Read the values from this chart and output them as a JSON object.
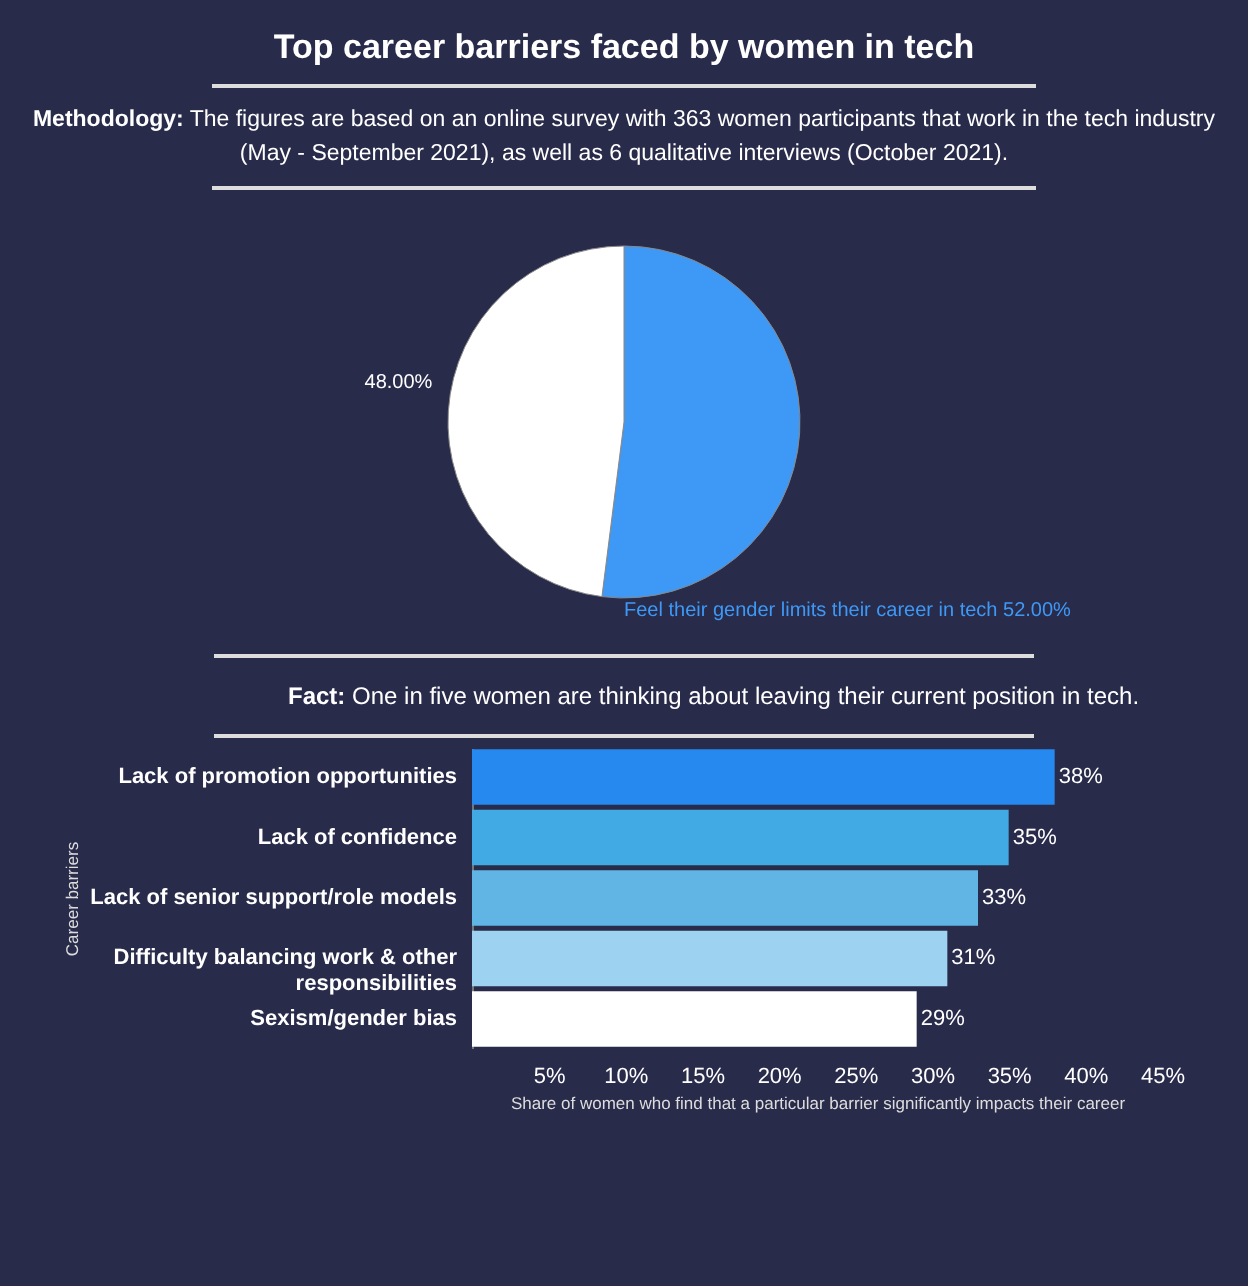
{
  "chart_data": [
    {
      "type": "pie",
      "title": "Top career barriers faced by women in tech",
      "annotations": [
        "Methodology: The figures are based on an online survey with 363 women participants that work in the tech industry (May - September 2021), as well as 6 qualitative interviews (October 2021)."
      ],
      "categories": [
        "Feel their gender limits their career in tech",
        null
      ],
      "values": [
        52,
        48
      ],
      "colors": [
        "#3d99f5",
        "#ffffff"
      ],
      "value_labels": [
        "52.00%",
        "48.00%"
      ],
      "legend": false
    },
    {
      "type": "bar",
      "orientation": "horizontal",
      "annotations": [
        "Fact: One in five women are thinking about leaving their current position in tech."
      ],
      "categories": [
        "Lack of promotion opportunities",
        "Lack of confidence",
        "Lack of senior support/role models",
        "Difficulty balancing work & other responsibilities",
        "Sexism/gender bias"
      ],
      "values": [
        38,
        35,
        33,
        31,
        29
      ],
      "colors": [
        "#2589f0",
        "#41aae5",
        "#60b5e4",
        "#9dd3f0",
        "#ffffff"
      ],
      "value_labels": [
        "38%",
        "35%",
        "33%",
        "31%",
        "29%"
      ],
      "xlim": [
        0,
        45
      ],
      "xticks": [
        {
          "value": 5,
          "label": "5%"
        },
        {
          "value": 10,
          "label": "10%"
        },
        {
          "value": 15,
          "label": "15%"
        },
        {
          "value": 20,
          "label": "20%"
        },
        {
          "value": 25,
          "label": "25%"
        },
        {
          "value": 30,
          "label": "30%"
        },
        {
          "value": 35,
          "label": "35%"
        },
        {
          "value": 40,
          "label": "40%"
        },
        {
          "value": 45,
          "label": "45%"
        }
      ],
      "xlabel": "Share of women who find that a particular barrier significantly impacts their career",
      "ylabel": "Career barriers",
      "grid": false,
      "legend": false
    }
  ]
}
